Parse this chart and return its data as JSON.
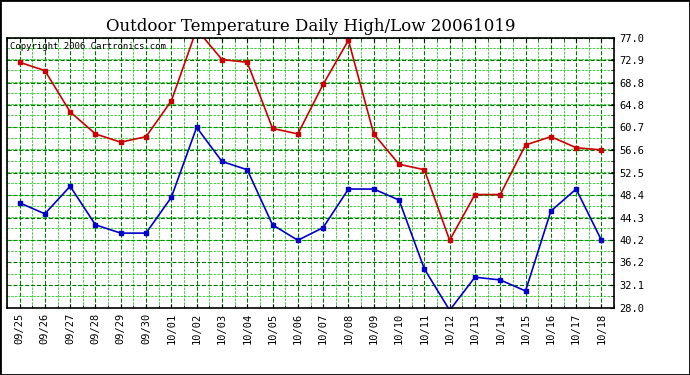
{
  "title": "Outdoor Temperature Daily High/Low 20061019",
  "copyright": "Copyright 2006 Cartronics.com",
  "x_labels": [
    "09/25",
    "09/26",
    "09/27",
    "09/28",
    "09/29",
    "09/30",
    "10/01",
    "10/02",
    "10/03",
    "10/04",
    "10/05",
    "10/06",
    "10/07",
    "10/08",
    "10/09",
    "10/10",
    "10/11",
    "10/12",
    "10/13",
    "10/14",
    "10/15",
    "10/16",
    "10/17",
    "10/18"
  ],
  "high_temps": [
    72.5,
    71.0,
    63.5,
    59.5,
    58.0,
    59.0,
    65.5,
    78.5,
    73.0,
    72.5,
    60.5,
    59.5,
    68.5,
    76.5,
    59.5,
    54.0,
    53.0,
    40.2,
    48.5,
    48.5,
    57.5,
    59.0,
    57.0,
    56.6
  ],
  "low_temps": [
    47.0,
    45.0,
    50.0,
    43.0,
    41.5,
    41.5,
    48.0,
    60.7,
    54.5,
    53.0,
    43.0,
    40.2,
    42.5,
    49.5,
    49.5,
    47.5,
    35.0,
    27.5,
    33.5,
    33.0,
    31.0,
    45.5,
    49.5,
    40.2
  ],
  "high_color": "#cc0000",
  "low_color": "#0000cc",
  "bg_color": "#ffffff",
  "plot_bg_color": "#ffffff",
  "grid_color_major": "#007700",
  "grid_color_minor": "#00bb00",
  "ylim": [
    28.0,
    77.0
  ],
  "yticks": [
    28.0,
    32.1,
    36.2,
    40.2,
    44.3,
    48.4,
    52.5,
    56.6,
    60.7,
    64.8,
    68.8,
    72.9,
    77.0
  ],
  "marker": "s",
  "marker_size": 3,
  "linewidth": 1.2,
  "title_fontsize": 12,
  "tick_fontsize": 7.5,
  "copyright_fontsize": 6.5
}
